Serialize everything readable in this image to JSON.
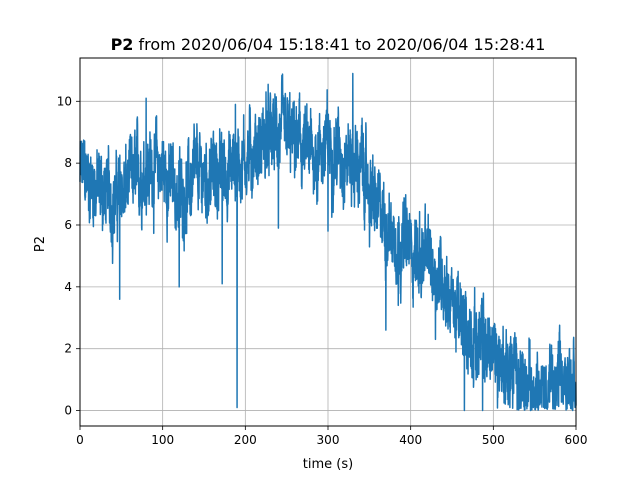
{
  "chart_data": {
    "type": "line",
    "title_bold": "P2",
    "title_rest": " from 2020/06/04 15:18:41 to 2020/06/04 15:28:41",
    "xlabel": "time (s)",
    "ylabel": "P2",
    "xlim": [
      0,
      600
    ],
    "ylim": [
      -0.5,
      11.4
    ],
    "x_ticks": [
      0,
      100,
      200,
      300,
      400,
      500,
      600
    ],
    "y_ticks": [
      0,
      2,
      4,
      6,
      8,
      10
    ],
    "grid": true,
    "series": [
      {
        "color": "#1f77b4",
        "trend": [
          [
            0,
            7.6
          ],
          [
            20,
            7.3
          ],
          [
            40,
            6.8
          ],
          [
            60,
            7.3
          ],
          [
            80,
            7.9
          ],
          [
            100,
            7.8
          ],
          [
            120,
            6.9
          ],
          [
            140,
            7.5
          ],
          [
            160,
            7.6
          ],
          [
            180,
            7.8
          ],
          [
            200,
            8.2
          ],
          [
            220,
            8.6
          ],
          [
            240,
            8.9
          ],
          [
            260,
            8.6
          ],
          [
            280,
            8.2
          ],
          [
            300,
            8.6
          ],
          [
            320,
            8.3
          ],
          [
            340,
            7.8
          ],
          [
            360,
            6.4
          ],
          [
            380,
            5.7
          ],
          [
            400,
            5.3
          ],
          [
            420,
            4.8
          ],
          [
            440,
            4.3
          ],
          [
            460,
            2.8
          ],
          [
            480,
            2.3
          ],
          [
            500,
            1.9
          ],
          [
            520,
            1.3
          ],
          [
            540,
            0.9
          ],
          [
            560,
            0.7
          ],
          [
            580,
            0.8
          ],
          [
            600,
            0.9
          ]
        ],
        "spikes": [
          [
            48,
            3.6
          ],
          [
            120,
            4.0
          ],
          [
            172,
            4.1
          ],
          [
            190,
            0.1
          ],
          [
            240,
            5.9
          ],
          [
            300,
            5.8
          ],
          [
            370,
            2.6
          ],
          [
            385,
            3.4
          ],
          [
            410,
            3.8
          ],
          [
            430,
            2.3
          ],
          [
            465,
            0.0
          ],
          [
            487,
            0.0
          ],
          [
            520,
            0.1
          ],
          [
            545,
            0.0
          ],
          [
            330,
            10.9
          ],
          [
            225,
            10.3
          ],
          [
            188,
            9.9
          ],
          [
            80,
            10.1
          ]
        ],
        "noise_amplitude": 1.1
      }
    ]
  }
}
